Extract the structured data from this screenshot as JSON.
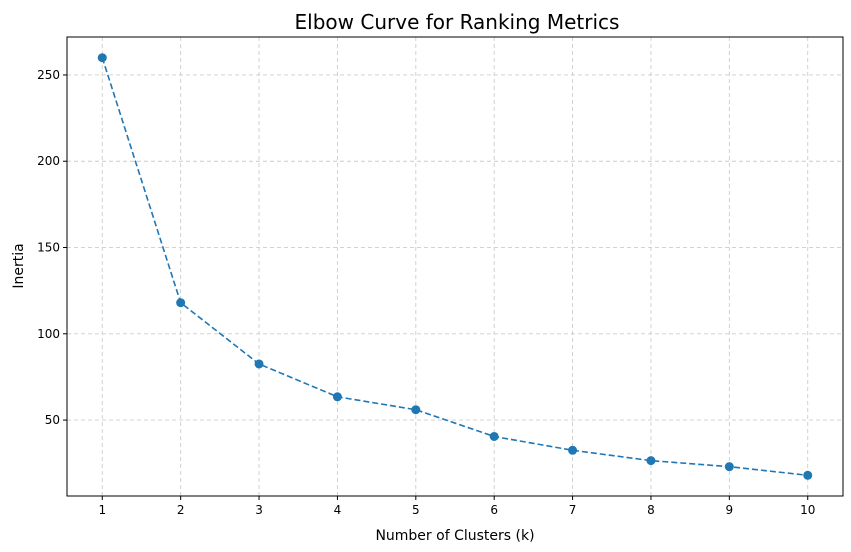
{
  "chart_data": {
    "type": "line",
    "title": "Elbow Curve for Ranking Metrics",
    "xlabel": "Number of Clusters (k)",
    "ylabel": "Inertia",
    "x": [
      1,
      2,
      3,
      4,
      5,
      6,
      7,
      8,
      9,
      10
    ],
    "series": [
      {
        "values": [
          260,
          118,
          82.5,
          63.5,
          56,
          40.5,
          32.5,
          26.5,
          23,
          18
        ],
        "color": "#1f77b4",
        "line_style": "dashed",
        "marker": "circle"
      }
    ],
    "xticks": [
      1,
      2,
      3,
      4,
      5,
      6,
      7,
      8,
      9,
      10
    ],
    "yticks": [
      50,
      100,
      150,
      200,
      250
    ],
    "xlim": [
      0.55,
      10.45
    ],
    "ylim": [
      6,
      272
    ],
    "grid": true
  }
}
